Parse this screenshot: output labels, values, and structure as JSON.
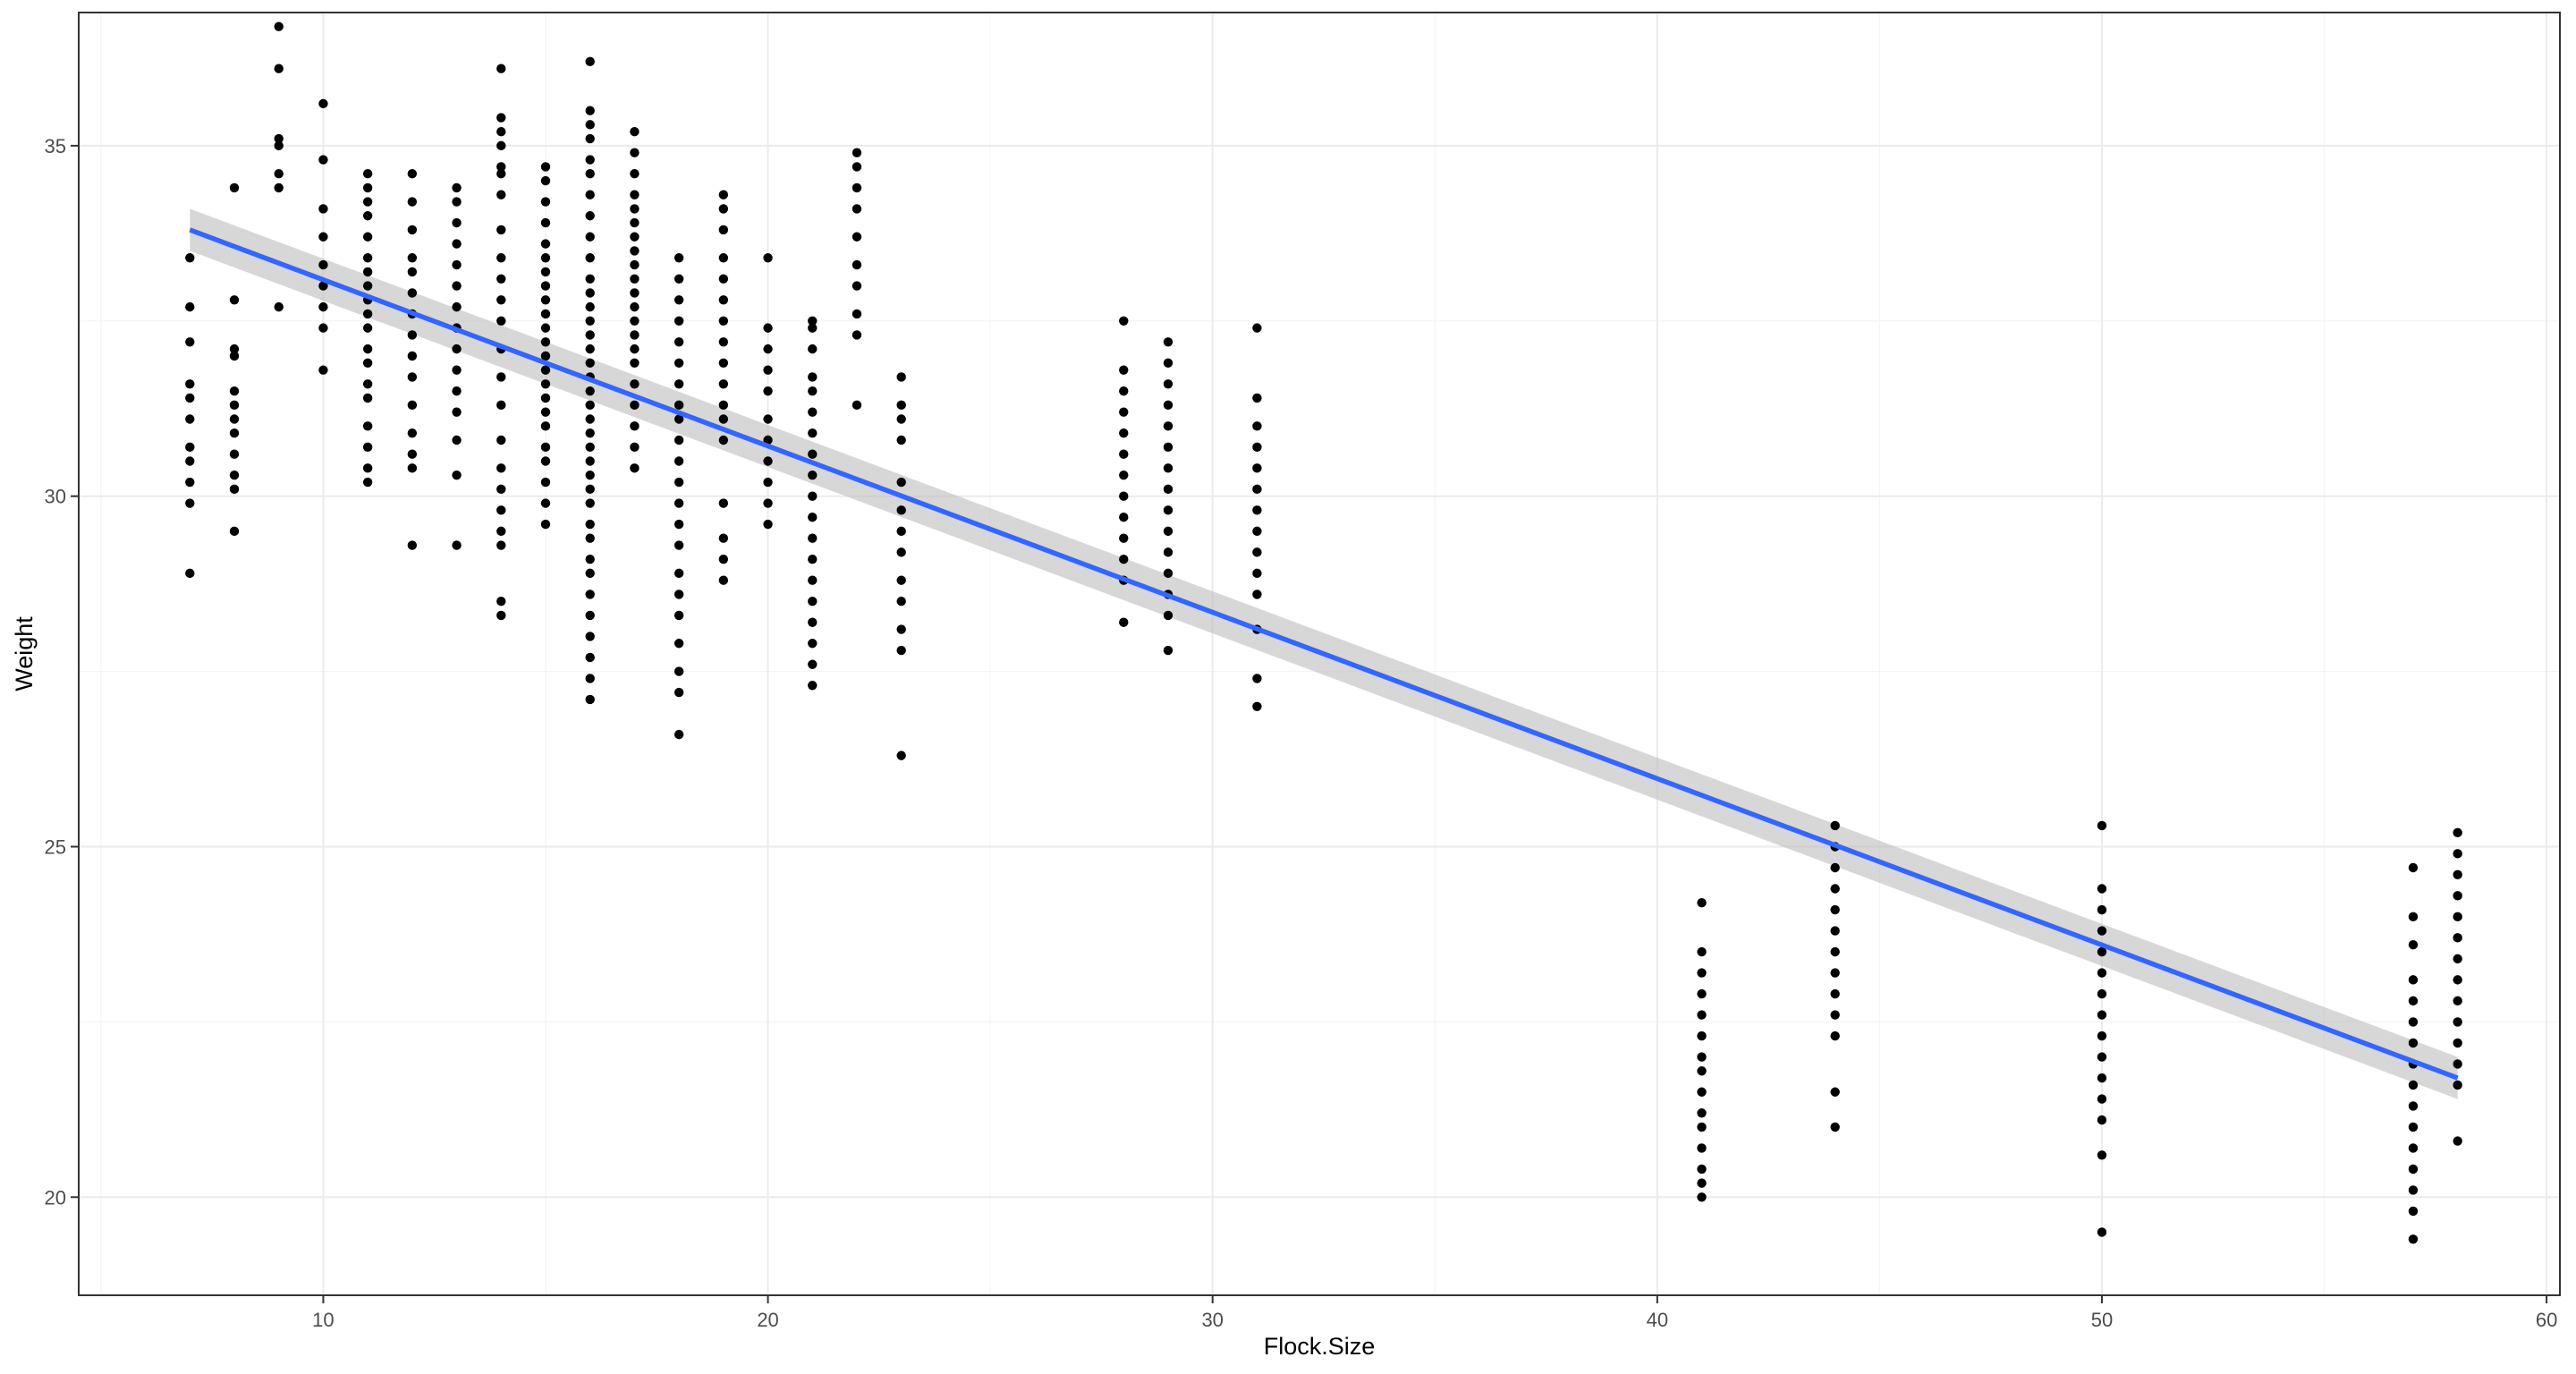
{
  "chart_data": {
    "type": "scatter",
    "title": "",
    "xlabel": "Flock.Size",
    "ylabel": "Weight",
    "xlim": [
      4.5,
      60.3
    ],
    "ylim": [
      18.6,
      36.9
    ],
    "x_ticks": [
      10,
      20,
      30,
      40,
      50,
      60
    ],
    "y_ticks": [
      20,
      25,
      30,
      35
    ],
    "grid": true,
    "legend": "none",
    "colors": {
      "points": "#000000",
      "fit_line": "#3366ff",
      "ribbon": "#bdbdbd",
      "grid_major": "#ebebeb",
      "grid_minor": "#f5f5f5",
      "panel_border": "#333333"
    },
    "series": [
      {
        "kind": "points",
        "groups": [
          {
            "x": 7,
            "y": [
              28.9,
              29.9,
              30.2,
              30.5,
              30.7,
              31.1,
              31.4,
              31.6,
              32.2,
              32.7,
              33.4
            ]
          },
          {
            "x": 8,
            "y": [
              29.5,
              30.1,
              30.3,
              30.6,
              30.9,
              31.1,
              31.3,
              31.5,
              32.0,
              32.1,
              32.8,
              34.4
            ]
          },
          {
            "x": 9,
            "y": [
              32.7,
              34.4,
              34.6,
              35.0,
              35.1,
              36.1,
              36.7
            ]
          },
          {
            "x": 10,
            "y": [
              31.8,
              32.4,
              32.7,
              33.0,
              33.3,
              33.7,
              34.1,
              34.8,
              35.6
            ]
          },
          {
            "x": 11,
            "y": [
              30.2,
              30.4,
              30.7,
              31.0,
              31.4,
              31.6,
              31.9,
              32.1,
              32.4,
              32.6,
              32.8,
              33.0,
              33.2,
              33.4,
              33.7,
              34.0,
              34.2,
              34.4,
              34.6
            ]
          },
          {
            "x": 12,
            "y": [
              29.3,
              30.4,
              30.6,
              30.9,
              31.3,
              31.7,
              32.0,
              32.3,
              32.6,
              32.9,
              33.2,
              33.4,
              33.8,
              34.2,
              34.6
            ]
          },
          {
            "x": 13,
            "y": [
              29.3,
              30.3,
              30.8,
              31.2,
              31.5,
              31.8,
              32.1,
              32.4,
              32.7,
              33.0,
              33.3,
              33.6,
              33.9,
              34.2,
              34.4
            ]
          },
          {
            "x": 14,
            "y": [
              28.3,
              28.5,
              29.3,
              29.5,
              29.8,
              30.1,
              30.4,
              30.8,
              31.3,
              31.7,
              32.1,
              32.5,
              32.8,
              33.1,
              33.4,
              33.8,
              34.3,
              34.6,
              34.7,
              35.0,
              35.2,
              35.4,
              36.1
            ]
          },
          {
            "x": 15,
            "y": [
              29.6,
              29.9,
              30.2,
              30.5,
              30.7,
              31.0,
              31.2,
              31.4,
              31.6,
              31.8,
              32.0,
              32.2,
              32.4,
              32.6,
              32.8,
              33.0,
              33.2,
              33.4,
              33.6,
              33.9,
              34.2,
              34.5,
              34.7
            ]
          },
          {
            "x": 16,
            "y": [
              27.1,
              27.4,
              27.7,
              28.0,
              28.3,
              28.6,
              28.9,
              29.1,
              29.4,
              29.6,
              29.9,
              30.1,
              30.3,
              30.5,
              30.7,
              30.9,
              31.1,
              31.3,
              31.5,
              31.7,
              31.9,
              32.1,
              32.3,
              32.5,
              32.7,
              32.9,
              33.1,
              33.4,
              33.7,
              34.0,
              34.3,
              34.6,
              34.8,
              35.1,
              35.3,
              35.5,
              36.2
            ]
          },
          {
            "x": 17,
            "y": [
              30.4,
              30.7,
              31.0,
              31.3,
              31.6,
              31.9,
              32.1,
              32.3,
              32.5,
              32.7,
              32.9,
              33.1,
              33.3,
              33.5,
              33.7,
              33.9,
              34.1,
              34.3,
              34.6,
              34.9,
              35.2
            ]
          },
          {
            "x": 18,
            "y": [
              26.6,
              27.2,
              27.5,
              27.9,
              28.3,
              28.6,
              28.9,
              29.3,
              29.6,
              29.9,
              30.2,
              30.5,
              30.8,
              31.1,
              31.3,
              31.6,
              31.9,
              32.2,
              32.5,
              32.8,
              33.1,
              33.4
            ]
          },
          {
            "x": 19,
            "y": [
              28.8,
              29.1,
              29.4,
              29.9,
              30.8,
              31.1,
              31.3,
              31.6,
              31.9,
              32.2,
              32.5,
              32.8,
              33.1,
              33.4,
              33.8,
              34.1,
              34.3
            ]
          },
          {
            "x": 20,
            "y": [
              29.6,
              29.9,
              30.2,
              30.5,
              30.8,
              31.1,
              31.5,
              31.8,
              32.1,
              32.4,
              33.4
            ]
          },
          {
            "x": 21,
            "y": [
              27.3,
              27.6,
              27.9,
              28.2,
              28.5,
              28.8,
              29.1,
              29.4,
              29.7,
              30.0,
              30.3,
              30.6,
              30.9,
              31.2,
              31.5,
              31.7,
              32.1,
              32.4,
              32.5
            ]
          },
          {
            "x": 22,
            "y": [
              31.3,
              32.3,
              32.6,
              33.0,
              33.3,
              33.7,
              34.1,
              34.4,
              34.7,
              34.9
            ]
          },
          {
            "x": 23,
            "y": [
              26.3,
              27.8,
              28.1,
              28.5,
              28.8,
              29.2,
              29.5,
              29.8,
              30.2,
              30.8,
              31.1,
              31.3,
              31.7
            ]
          },
          {
            "x": 28,
            "y": [
              28.2,
              28.8,
              29.1,
              29.4,
              29.7,
              30.0,
              30.3,
              30.6,
              30.9,
              31.2,
              31.5,
              31.8,
              32.5
            ]
          },
          {
            "x": 29,
            "y": [
              27.8,
              28.3,
              28.6,
              28.9,
              29.2,
              29.5,
              29.8,
              30.1,
              30.4,
              30.7,
              31.0,
              31.3,
              31.6,
              31.9,
              32.2
            ]
          },
          {
            "x": 31,
            "y": [
              27.0,
              27.4,
              28.1,
              28.6,
              28.9,
              29.2,
              29.5,
              29.8,
              30.1,
              30.4,
              30.7,
              31.0,
              31.4,
              32.4
            ]
          },
          {
            "x": 41,
            "y": [
              20.0,
              20.2,
              20.4,
              20.7,
              21.0,
              21.2,
              21.5,
              21.8,
              22.0,
              22.3,
              22.6,
              22.9,
              23.2,
              23.5,
              24.2
            ]
          },
          {
            "x": 44,
            "y": [
              21.0,
              21.5,
              22.3,
              22.6,
              22.9,
              23.2,
              23.5,
              23.8,
              24.1,
              24.4,
              24.7,
              25.0,
              25.3
            ]
          },
          {
            "x": 50,
            "y": [
              19.5,
              20.6,
              21.1,
              21.4,
              21.7,
              22.0,
              22.3,
              22.6,
              22.9,
              23.2,
              23.5,
              23.8,
              24.1,
              24.4,
              25.3
            ]
          },
          {
            "x": 57,
            "y": [
              19.4,
              19.8,
              20.1,
              20.4,
              20.7,
              21.0,
              21.3,
              21.6,
              21.9,
              22.2,
              22.5,
              22.8,
              23.1,
              23.6,
              24.0,
              24.7
            ]
          },
          {
            "x": 58,
            "y": [
              20.8,
              21.6,
              21.9,
              22.2,
              22.5,
              22.8,
              23.1,
              23.4,
              23.7,
              24.0,
              24.3,
              24.6,
              24.9,
              25.2
            ]
          }
        ]
      },
      {
        "kind": "fit",
        "x": [
          7,
          58
        ],
        "y": [
          33.8,
          21.7
        ],
        "ci_lower": [
          33.5,
          21.4
        ],
        "ci_upper": [
          34.1,
          22.0
        ]
      }
    ]
  }
}
